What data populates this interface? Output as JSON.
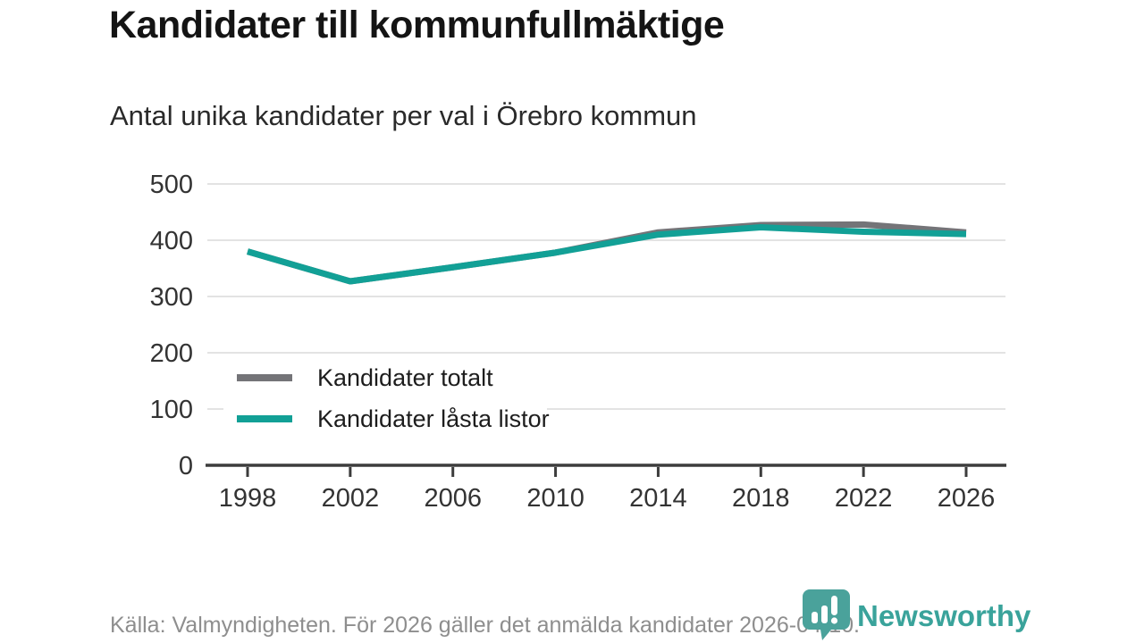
{
  "page": {
    "title": "Kandidater till kommunfullmäktige",
    "subtitle": "Antal unika kandidater per val i Örebro kommun",
    "footer": "Källa: Valmyndigheten. För 2026 gäller det anmälda kandidater 2026-04-10.",
    "brand": {
      "name": "Newsworthy",
      "color": "#3aa39b"
    }
  },
  "chart_data": {
    "type": "line",
    "title": "Kandidater till kommunfullmäktige",
    "subtitle": "Antal unika kandidater per val i Örebro kommun",
    "categories": [
      "1998",
      "2002",
      "2006",
      "2010",
      "2014",
      "2018",
      "2022",
      "2026"
    ],
    "series": [
      {
        "name": "Kandidater totalt",
        "color": "#747478",
        "values": [
          380,
          327,
          352,
          378,
          414,
          427,
          428,
          414
        ]
      },
      {
        "name": "Kandidater låsta listor",
        "color": "#12a096",
        "values": [
          380,
          327,
          352,
          378,
          410,
          423,
          415,
          411
        ]
      }
    ],
    "ylim": [
      0,
      500
    ],
    "yticks": [
      0,
      100,
      200,
      300,
      400,
      500
    ],
    "grid": "horizontal",
    "legend_position": "inside-bottom-left",
    "colors": {
      "grid": "#e3e3e3",
      "axis": "#3c3c3c",
      "tick_label": "#333333",
      "legend_label": "#1d1d1d",
      "background": "#ffffff"
    }
  }
}
